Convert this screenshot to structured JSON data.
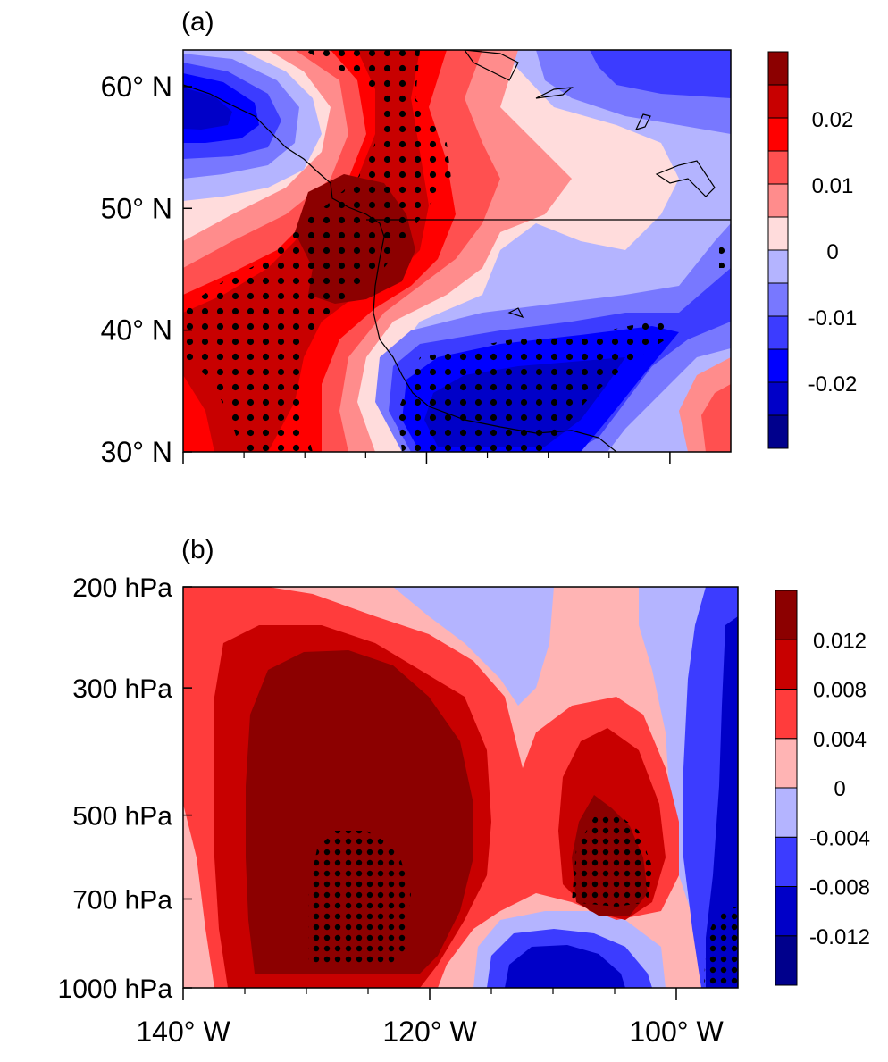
{
  "chart_data": [
    {
      "panel": "(a)",
      "type": "heatmap",
      "subtype": "filled contour map with stippling",
      "y_ticks": [
        "30° N",
        "40° N",
        "50° N",
        "60° N"
      ],
      "y_tick_values": [
        30,
        40,
        50,
        60
      ],
      "x_tick_values": [
        -140,
        -120,
        -100
      ],
      "xlim": [
        -140,
        -95
      ],
      "ylim": [
        30,
        63
      ],
      "colorbar": {
        "labels": [
          "0.02",
          "0.01",
          "0",
          "-0.01",
          "-0.02"
        ],
        "levels": [
          -0.03,
          -0.025,
          -0.02,
          -0.015,
          -0.01,
          -0.005,
          0,
          0.005,
          0.01,
          0.015,
          0.02,
          0.025,
          0.03
        ],
        "colors": [
          "#00008c",
          "#0000c8",
          "#0000ff",
          "#3c3cff",
          "#7878ff",
          "#b4b4ff",
          "#ffdcdc",
          "#ff8c8c",
          "#ff5050",
          "#ff0000",
          "#c80000",
          "#8c0000"
        ]
      },
      "features": {
        "positive_centers": [
          "offshore 128°W–123°W, 44°N–49°N (max)",
          "135°W–122°W band stippled 31°N–63°N"
        ],
        "negative_centers": [
          "120°W–103°W, 32°N–40°N (min, stippled)",
          "140°W–135°W, 56°N–61°N"
        ],
        "stippling": "significant areas marked with dots"
      }
    },
    {
      "panel": "(b)",
      "type": "heatmap",
      "subtype": "filled contour longitude-pressure cross section with stippling",
      "y_ticks": [
        "200 hPa",
        "300 hPa",
        "500 hPa",
        "700 hPa",
        "1000 hPa"
      ],
      "y_tick_values": [
        200,
        300,
        500,
        700,
        1000
      ],
      "x_ticks": [
        "140° W",
        "120° W",
        "100° W"
      ],
      "x_tick_values": [
        -140,
        -120,
        -100
      ],
      "xlim": [
        -140,
        -95
      ],
      "ylim": [
        1000,
        200
      ],
      "colorbar": {
        "labels": [
          "0.012",
          "0.008",
          "0.004",
          "0",
          "-0.004",
          "-0.008",
          "-0.012"
        ],
        "levels": [
          -0.016,
          -0.012,
          -0.008,
          -0.004,
          0,
          0.004,
          0.008,
          0.012,
          0.016
        ],
        "colors": [
          "#00008c",
          "#0000c8",
          "#3c3cff",
          "#b4b4ff",
          "#ffb4b4",
          "#ff3c3c",
          "#c80000",
          "#8c0000"
        ]
      },
      "features": {
        "positive_centers": [
          "135°W–122°W, 250–950 hPa (max, stippled near 700 hPa)",
          "108°W–102°W, 450–850 hPa (stippled)"
        ],
        "negative_centers": [
          "115°W–100°W, 800–1000 hPa",
          "98°W–95°W, 250–1000 hPa"
        ]
      }
    }
  ],
  "panel_a": {
    "label": "(a)"
  },
  "panel_b": {
    "label": "(b)"
  },
  "x_axis": {
    "ticks": [
      "140° W",
      "120° W",
      "100° W"
    ]
  }
}
